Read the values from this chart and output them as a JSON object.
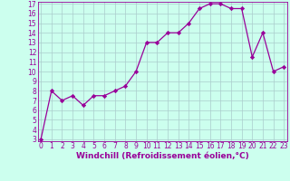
{
  "x": [
    0,
    1,
    2,
    3,
    4,
    5,
    6,
    7,
    8,
    9,
    10,
    11,
    12,
    13,
    14,
    15,
    16,
    17,
    18,
    19,
    20,
    21,
    22,
    23
  ],
  "y": [
    3,
    8,
    7,
    7.5,
    6.5,
    7.5,
    7.5,
    8,
    8.5,
    10,
    13,
    13,
    14,
    14,
    15,
    16.5,
    17,
    17,
    16.5,
    16.5,
    11.5,
    14,
    10,
    10.5
  ],
  "line_color": "#990099",
  "marker": "D",
  "marker_size": 2.2,
  "line_width": 0.9,
  "bg_color": "#ccffee",
  "grid_color": "#aacccc",
  "xlabel": "Windchill (Refroidissement éolien,°C)",
  "xlabel_color": "#990099",
  "tick_color": "#990099",
  "ylim_min": 3,
  "ylim_max": 17,
  "xlim_min": 0,
  "xlim_max": 23,
  "yticks": [
    3,
    4,
    5,
    6,
    7,
    8,
    9,
    10,
    11,
    12,
    13,
    14,
    15,
    16,
    17
  ],
  "xticks": [
    0,
    1,
    2,
    3,
    4,
    5,
    6,
    7,
    8,
    9,
    10,
    11,
    12,
    13,
    14,
    15,
    16,
    17,
    18,
    19,
    20,
    21,
    22,
    23
  ],
  "tick_fontsize": 5.5,
  "xlabel_fontsize": 6.5
}
